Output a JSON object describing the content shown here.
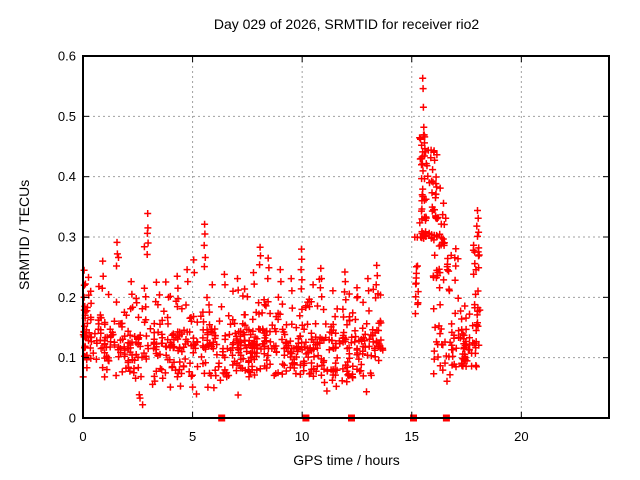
{
  "chart_data": {
    "type": "scatter",
    "title": "Day 029 of 2026, SRMTID for receiver rio2",
    "xlabel": "GPS time / hours",
    "ylabel": "SRMTID / TECUs",
    "xlim": [
      0,
      24
    ],
    "ylim": [
      0,
      0.6
    ],
    "grid": true,
    "x_ticks": {
      "values": [
        0,
        5,
        10,
        15,
        20
      ],
      "labels": [
        "0",
        "5",
        "10",
        "15",
        "20"
      ]
    },
    "y_ticks": {
      "values": [
        0,
        0.1,
        0.2,
        0.3,
        0.4,
        0.5,
        0.6
      ],
      "labels": [
        "0",
        "0.1",
        "0.2",
        "0.3",
        "0.4",
        "0.5",
        "0.6"
      ]
    },
    "marker": "plus",
    "marker_color": "#ff0000",
    "grid_color": "#a0a0a0",
    "border_color": "#000000",
    "background_color": "#ffffff",
    "event_marker_color": "#ff0000",
    "event_markers_x": [
      6.33,
      10.17,
      12.25,
      15.08,
      16.58
    ],
    "seed": 7,
    "feature_points": [
      [
        0.05,
        0.245
      ],
      [
        0.06,
        0.22
      ],
      [
        0.05,
        0.2
      ],
      [
        0.08,
        0.185
      ],
      [
        0.1,
        0.17
      ],
      [
        0.07,
        0.152
      ],
      [
        0.12,
        0.135
      ],
      [
        0.35,
        0.21
      ],
      [
        0.37,
        0.19
      ],
      [
        0.9,
        0.26
      ],
      [
        0.92,
        0.235
      ],
      [
        0.88,
        0.215
      ],
      [
        1.55,
        0.291
      ],
      [
        1.57,
        0.272
      ],
      [
        1.53,
        0.252
      ],
      [
        1.62,
        0.266
      ],
      [
        2.2,
        0.226
      ],
      [
        2.23,
        0.205
      ],
      [
        2.8,
        0.284
      ],
      [
        2.95,
        0.339
      ],
      [
        2.96,
        0.315
      ],
      [
        2.94,
        0.306
      ],
      [
        2.97,
        0.29
      ],
      [
        2.93,
        0.271
      ],
      [
        3.35,
        0.225
      ],
      [
        3.9,
        0.2
      ],
      [
        4.3,
        0.235
      ],
      [
        4.33,
        0.215
      ],
      [
        4.75,
        0.246
      ],
      [
        4.78,
        0.226
      ],
      [
        5.05,
        0.262
      ],
      [
        5.08,
        0.241
      ],
      [
        5.55,
        0.321
      ],
      [
        5.56,
        0.305
      ],
      [
        5.53,
        0.286
      ],
      [
        5.58,
        0.266
      ],
      [
        5.54,
        0.251
      ],
      [
        5.9,
        0.221
      ],
      [
        6.45,
        0.238
      ],
      [
        6.48,
        0.221
      ],
      [
        7.05,
        0.231
      ],
      [
        7.08,
        0.212
      ],
      [
        7.5,
        0.201
      ],
      [
        7.78,
        0.241
      ],
      [
        7.81,
        0.222
      ],
      [
        8.08,
        0.283
      ],
      [
        8.1,
        0.269
      ],
      [
        8.06,
        0.254
      ],
      [
        8.45,
        0.265
      ],
      [
        8.48,
        0.249
      ],
      [
        8.43,
        0.231
      ],
      [
        9.0,
        0.246
      ],
      [
        9.03,
        0.226
      ],
      [
        9.5,
        0.231
      ],
      [
        9.53,
        0.211
      ],
      [
        9.97,
        0.28
      ],
      [
        9.98,
        0.263
      ],
      [
        9.95,
        0.246
      ],
      [
        9.99,
        0.229
      ],
      [
        9.96,
        0.214
      ],
      [
        10.5,
        0.221
      ],
      [
        10.85,
        0.248
      ],
      [
        10.88,
        0.231
      ],
      [
        10.83,
        0.216
      ],
      [
        10.89,
        0.201
      ],
      [
        11.4,
        0.211
      ],
      [
        11.95,
        0.242
      ],
      [
        11.97,
        0.226
      ],
      [
        11.93,
        0.209
      ],
      [
        11.99,
        0.196
      ],
      [
        12.5,
        0.216
      ],
      [
        12.53,
        0.201
      ],
      [
        13.0,
        0.231
      ],
      [
        13.03,
        0.211
      ],
      [
        13.4,
        0.253
      ],
      [
        13.43,
        0.236
      ],
      [
        13.38,
        0.221
      ],
      [
        13.46,
        0.206
      ],
      [
        13.35,
        0.199
      ],
      [
        2.72,
        0.022
      ],
      [
        2.6,
        0.033
      ],
      [
        5.7,
        0.051
      ],
      [
        15.5,
        0.563
      ],
      [
        15.52,
        0.546
      ],
      [
        15.53,
        0.515
      ],
      [
        15.55,
        0.482
      ],
      [
        15.54,
        0.469
      ],
      [
        15.45,
        0.452
      ],
      [
        15.5,
        0.441
      ],
      [
        15.58,
        0.456
      ],
      [
        15.63,
        0.441
      ],
      [
        15.42,
        0.43
      ],
      [
        16.3,
        0.381
      ],
      [
        16.45,
        0.356
      ],
      [
        16.55,
        0.331
      ],
      [
        18.0,
        0.344
      ],
      [
        18.03,
        0.331
      ],
      [
        17.97,
        0.318
      ],
      [
        18.05,
        0.308
      ],
      [
        18.0,
        0.301
      ]
    ],
    "noise_bands": [
      {
        "x0": 0.0,
        "x1": 13.75,
        "n": 390,
        "y0": 0.068,
        "y1": 0.148,
        "pow": 1.1,
        "snap": 0.09
      },
      {
        "x0": 0.0,
        "x1": 13.75,
        "n": 215,
        "y0": 0.115,
        "y1": 0.205,
        "pow": 1.9,
        "snap": 0.09
      },
      {
        "x0": 0.0,
        "x1": 13.75,
        "n": 55,
        "y0": 0.155,
        "y1": 0.245,
        "pow": 2.2,
        "snap": 0.09
      },
      {
        "x0": 1.3,
        "x1": 7.2,
        "n": 16,
        "y0": 0.038,
        "y1": 0.075,
        "pow": 1,
        "snap": 0.09
      },
      {
        "x0": 10.4,
        "x1": 13.5,
        "n": 12,
        "y0": 0.04,
        "y1": 0.075,
        "pow": 1,
        "snap": 0.09
      },
      {
        "x0": 0.02,
        "x1": 0.3,
        "n": 12,
        "y0": 0.09,
        "y1": 0.24,
        "pow": 1,
        "snap": 0
      },
      {
        "x0": 15.13,
        "x1": 15.3,
        "n": 13,
        "y0": 0.1,
        "y1": 0.31,
        "pow": 1,
        "snap": 0
      },
      {
        "x0": 15.33,
        "x1": 15.68,
        "n": 15,
        "y0": 0.3,
        "y1": 0.47,
        "pow": 1.2,
        "snap": 0
      },
      {
        "x0": 15.4,
        "x1": 16.15,
        "n": 55,
        "y0": 0.295,
        "y1": 0.452,
        "pow": 1.1,
        "snap": 0
      },
      {
        "x0": 16.1,
        "x1": 16.55,
        "n": 16,
        "y0": 0.28,
        "y1": 0.4,
        "pow": 1.6,
        "snap": 0
      },
      {
        "x0": 15.85,
        "x1": 16.5,
        "n": 13,
        "y0": 0.2,
        "y1": 0.295,
        "pow": 1,
        "snap": 0
      },
      {
        "x0": 16.0,
        "x1": 16.45,
        "n": 15,
        "y0": 0.07,
        "y1": 0.2,
        "pow": 1,
        "snap": 0
      },
      {
        "x0": 16.4,
        "x1": 16.85,
        "n": 9,
        "y0": 0.06,
        "y1": 0.13,
        "pow": 1,
        "snap": 0
      },
      {
        "x0": 16.6,
        "x1": 17.15,
        "n": 13,
        "y0": 0.21,
        "y1": 0.285,
        "pow": 1,
        "snap": 0
      },
      {
        "x0": 16.78,
        "x1": 17.78,
        "n": 55,
        "y0": 0.085,
        "y1": 0.2,
        "pow": 1.4,
        "snap": 0.05
      },
      {
        "x0": 17.8,
        "x1": 18.12,
        "n": 30,
        "y0": 0.08,
        "y1": 0.3,
        "pow": 1,
        "snap": 0
      }
    ]
  }
}
